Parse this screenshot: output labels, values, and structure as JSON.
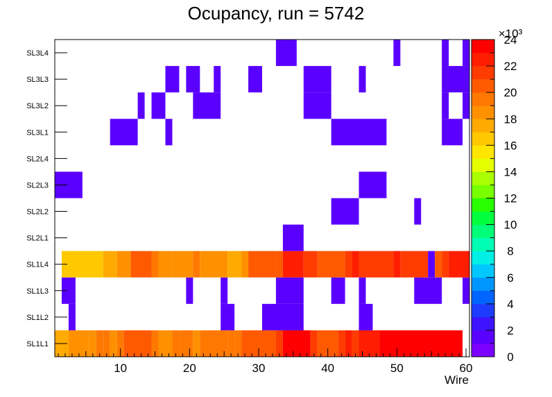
{
  "chart_data": {
    "type": "heatmap",
    "title": "Ocupancy, run = 5742",
    "xlabel": "Wire",
    "ylabel": "",
    "xlim": [
      0.5,
      60.5
    ],
    "x_ticks": [
      "10",
      "20",
      "30",
      "40",
      "50",
      "60"
    ],
    "y_categories": [
      "SL1L1",
      "SL1L2",
      "SL1L3",
      "SL1L4",
      "SL2L1",
      "SL2L2",
      "SL2L3",
      "SL2L4",
      "SL3L1",
      "SL3L2",
      "SL3L3",
      "SL3L4"
    ],
    "z_range": [
      0,
      24000
    ],
    "z_ticks": [
      "0",
      "2",
      "4",
      "6",
      "8",
      "10",
      "12",
      "14",
      "16",
      "18",
      "20",
      "22",
      "24"
    ],
    "z_exponent_label": "×10³",
    "rows": [
      {
        "layer": "SL1L1",
        "cells": [
          [
            1,
            2,
            17
          ],
          [
            3,
            5,
            18
          ],
          [
            6,
            6,
            18.5
          ],
          [
            7,
            7,
            19
          ],
          [
            8,
            8,
            19.5
          ],
          [
            9,
            9,
            18.5
          ],
          [
            10,
            10,
            19.5
          ],
          [
            11,
            14,
            20
          ],
          [
            15,
            15,
            19.5
          ],
          [
            16,
            17,
            18.5
          ],
          [
            18,
            18,
            19
          ],
          [
            19,
            20,
            19.5
          ],
          [
            21,
            21,
            18.5
          ],
          [
            22,
            25,
            19.5
          ],
          [
            26,
            26,
            19
          ],
          [
            27,
            27,
            19.5
          ],
          [
            28,
            32,
            20
          ],
          [
            33,
            33,
            21
          ],
          [
            34,
            37,
            23
          ],
          [
            38,
            38,
            21
          ],
          [
            39,
            41,
            20
          ],
          [
            42,
            42,
            21
          ],
          [
            43,
            43,
            22
          ],
          [
            44,
            44,
            21
          ],
          [
            45,
            47,
            22.5
          ],
          [
            48,
            59,
            23
          ]
        ]
      },
      {
        "layer": "SL1L2",
        "cells": [
          [
            3,
            3,
            1
          ],
          [
            25,
            26,
            1
          ],
          [
            31,
            36,
            1
          ],
          [
            45,
            46,
            1
          ]
        ]
      },
      {
        "layer": "SL1L3",
        "cells": [
          [
            2,
            3,
            1
          ],
          [
            20,
            20,
            1
          ],
          [
            25,
            25,
            1
          ],
          [
            33,
            36,
            1
          ],
          [
            41,
            42,
            1
          ],
          [
            45,
            45,
            1
          ],
          [
            53,
            56,
            1
          ],
          [
            60,
            60,
            1
          ]
        ]
      },
      {
        "layer": "SL1L4",
        "cells": [
          [
            2,
            2,
            16.5
          ],
          [
            3,
            7,
            16
          ],
          [
            8,
            9,
            17.5
          ],
          [
            10,
            11,
            18.5
          ],
          [
            12,
            14,
            20
          ],
          [
            15,
            15,
            19
          ],
          [
            16,
            17,
            18
          ],
          [
            18,
            20,
            18.5
          ],
          [
            21,
            21,
            19.5
          ],
          [
            22,
            25,
            18.5
          ],
          [
            26,
            27,
            17.5
          ],
          [
            28,
            28,
            18
          ],
          [
            29,
            32,
            20
          ],
          [
            33,
            33,
            20.5
          ],
          [
            34,
            36,
            22.5
          ],
          [
            37,
            38,
            21
          ],
          [
            39,
            42,
            20
          ],
          [
            43,
            43,
            21
          ],
          [
            44,
            44,
            22
          ],
          [
            45,
            49,
            21
          ],
          [
            50,
            50,
            22
          ],
          [
            51,
            54,
            21
          ],
          [
            55,
            55,
            1
          ],
          [
            56,
            56,
            20
          ],
          [
            57,
            57,
            21
          ],
          [
            58,
            60,
            22.5
          ]
        ]
      },
      {
        "layer": "SL2L1",
        "cells": [
          [
            34,
            36,
            1
          ]
        ]
      },
      {
        "layer": "SL2L2",
        "cells": [
          [
            41,
            44,
            1
          ],
          [
            53,
            53,
            1
          ]
        ]
      },
      {
        "layer": "SL2L3",
        "cells": [
          [
            1,
            4,
            1
          ],
          [
            45,
            48,
            1
          ]
        ]
      },
      {
        "layer": "SL2L4",
        "cells": []
      },
      {
        "layer": "SL3L1",
        "cells": [
          [
            9,
            12,
            1
          ],
          [
            17,
            17,
            1
          ],
          [
            41,
            48,
            1
          ],
          [
            57,
            59,
            1
          ]
        ]
      },
      {
        "layer": "SL3L2",
        "cells": [
          [
            13,
            13,
            1
          ],
          [
            15,
            16,
            1
          ],
          [
            21,
            24,
            1
          ],
          [
            37,
            40,
            1
          ],
          [
            57,
            57,
            1
          ],
          [
            60,
            60,
            1
          ]
        ]
      },
      {
        "layer": "SL3L3",
        "cells": [
          [
            17,
            18,
            1
          ],
          [
            20,
            21,
            1
          ],
          [
            24,
            24,
            1
          ],
          [
            29,
            30,
            1
          ],
          [
            37,
            40,
            1
          ],
          [
            45,
            45,
            1
          ],
          [
            57,
            60,
            1
          ]
        ]
      },
      {
        "layer": "SL3L4",
        "cells": [
          [
            33,
            35,
            1
          ],
          [
            50,
            50,
            1
          ],
          [
            57,
            57,
            1
          ],
          [
            60,
            60,
            1
          ]
        ]
      }
    ]
  }
}
